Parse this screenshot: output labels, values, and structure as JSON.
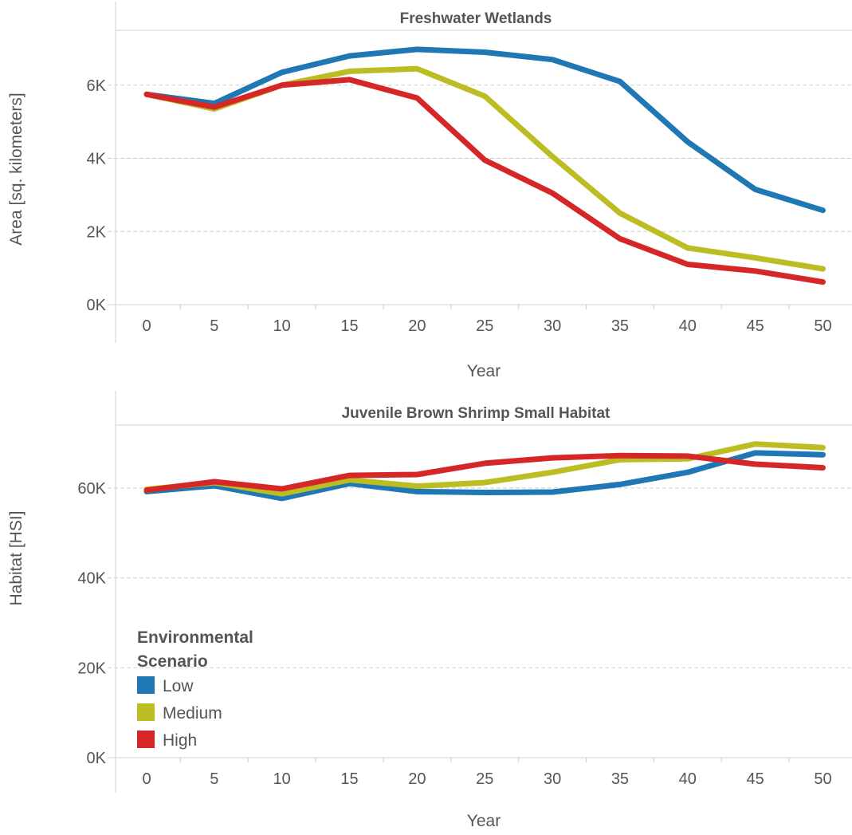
{
  "chart_data": [
    {
      "type": "line",
      "title": "Freshwater Wetlands",
      "xlabel": "Year",
      "ylabel": "Area [sq. kilometers]",
      "x": [
        0,
        5,
        10,
        15,
        20,
        25,
        30,
        35,
        40,
        45,
        50
      ],
      "xticks": [
        "0",
        "5",
        "10",
        "15",
        "20",
        "25",
        "30",
        "35",
        "40",
        "45",
        "50"
      ],
      "yticks": [
        {
          "value": 0,
          "label": "0K"
        },
        {
          "value": 2000,
          "label": "2K"
        },
        {
          "value": 4000,
          "label": "4K"
        },
        {
          "value": 6000,
          "label": "6K"
        }
      ],
      "ylim": [
        0,
        7500
      ],
      "grid": true,
      "series": [
        {
          "name": "Low",
          "color": "#1f77b4",
          "values": [
            5750,
            5500,
            6350,
            6800,
            6980,
            6900,
            6700,
            6100,
            4450,
            3150,
            2580
          ]
        },
        {
          "name": "Medium",
          "color": "#bcbd22",
          "values": [
            5750,
            5350,
            6000,
            6380,
            6450,
            5700,
            4050,
            2500,
            1550,
            1280,
            980
          ]
        },
        {
          "name": "High",
          "color": "#d62728",
          "values": [
            5750,
            5400,
            6000,
            6150,
            5650,
            3950,
            3050,
            1800,
            1100,
            920,
            620
          ]
        }
      ]
    },
    {
      "type": "line",
      "title": "Juvenile Brown Shrimp Small Habitat",
      "xlabel": "Year",
      "ylabel": "Habitat [HSI]",
      "x": [
        0,
        5,
        10,
        15,
        20,
        25,
        30,
        35,
        40,
        45,
        50
      ],
      "xticks": [
        "0",
        "5",
        "10",
        "15",
        "20",
        "25",
        "30",
        "35",
        "40",
        "45",
        "50"
      ],
      "yticks": [
        {
          "value": 0,
          "label": "0K"
        },
        {
          "value": 20000,
          "label": "20K"
        },
        {
          "value": 40000,
          "label": "40K"
        },
        {
          "value": 60000,
          "label": "60K"
        }
      ],
      "ylim": [
        0,
        74000
      ],
      "grid": true,
      "series": [
        {
          "name": "Low",
          "color": "#1f77b4",
          "values": [
            59200,
            60500,
            57700,
            61000,
            59200,
            59000,
            59100,
            60800,
            63500,
            67800,
            67400
          ]
        },
        {
          "name": "Medium",
          "color": "#bcbd22",
          "values": [
            59700,
            61200,
            58700,
            61800,
            60400,
            61200,
            63500,
            66300,
            66500,
            69800,
            69000
          ]
        },
        {
          "name": "High",
          "color": "#d62728",
          "values": [
            59500,
            61400,
            59800,
            62800,
            63000,
            65500,
            66700,
            67200,
            67100,
            65300,
            64500
          ]
        }
      ]
    }
  ],
  "legend": {
    "title_line1": "Environmental",
    "title_line2": "Scenario",
    "placement": "bottom-left of lower chart",
    "items": [
      {
        "label": "Low",
        "color": "#1f77b4"
      },
      {
        "label": "Medium",
        "color": "#bcbd22"
      },
      {
        "label": "High",
        "color": "#d62728"
      }
    ]
  }
}
